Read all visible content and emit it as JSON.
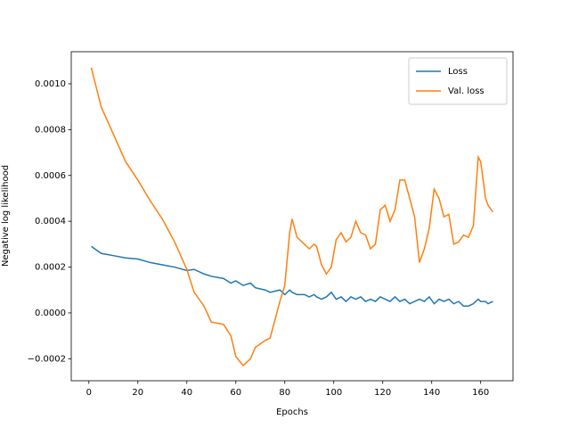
{
  "chart_data": {
    "type": "line",
    "x_label": "Epochs",
    "y_label": "Negative log likelihood",
    "x": [
      1,
      5,
      10,
      15,
      20,
      25,
      30,
      35,
      40,
      43,
      47,
      50,
      55,
      58,
      60,
      63,
      66,
      68,
      72,
      74,
      78,
      80,
      82,
      83,
      85,
      88,
      90,
      92,
      93,
      95,
      97,
      99,
      101,
      103,
      105,
      107,
      109,
      111,
      113,
      115,
      117,
      119,
      121,
      123,
      125,
      127,
      129,
      131,
      133,
      135,
      137,
      139,
      141,
      143,
      145,
      147,
      149,
      151,
      153,
      155,
      157,
      159,
      160,
      162,
      163,
      165
    ],
    "series": [
      {
        "name": "Loss",
        "color": "#1f77b4",
        "values": [
          0.00029,
          0.00026,
          0.00025,
          0.00024,
          0.000235,
          0.00022,
          0.00021,
          0.0002,
          0.000185,
          0.00019,
          0.00017,
          0.00016,
          0.00015,
          0.00013,
          0.00014,
          0.00012,
          0.00013,
          0.00011,
          0.0001,
          9e-05,
          0.0001,
          8e-05,
          0.0001,
          9e-05,
          8e-05,
          8e-05,
          7e-05,
          8e-05,
          7e-05,
          6e-05,
          7e-05,
          9e-05,
          6e-05,
          7e-05,
          5e-05,
          7e-05,
          6e-05,
          7e-05,
          5e-05,
          6e-05,
          5e-05,
          7e-05,
          6e-05,
          5e-05,
          7e-05,
          5e-05,
          6e-05,
          4e-05,
          5e-05,
          6e-05,
          5e-05,
          7e-05,
          4e-05,
          6e-05,
          5e-05,
          6e-05,
          4e-05,
          5e-05,
          3e-05,
          3e-05,
          4e-05,
          6e-05,
          5e-05,
          5e-05,
          4e-05,
          5e-05
        ]
      },
      {
        "name": "Val. loss",
        "color": "#ff7f0e",
        "values": [
          0.00107,
          0.0009,
          0.00078,
          0.00066,
          0.00058,
          0.00049,
          0.00041,
          0.00031,
          0.00019,
          9e-05,
          3e-05,
          -4e-05,
          -5e-05,
          -0.0001,
          -0.00019,
          -0.00023,
          -0.0002,
          -0.00015,
          -0.00012,
          -0.00011,
          5e-05,
          0.00012,
          0.00035,
          0.00041,
          0.00033,
          0.0003,
          0.00028,
          0.0003,
          0.00029,
          0.00021,
          0.00017,
          0.0002,
          0.00032,
          0.00035,
          0.00031,
          0.00033,
          0.0004,
          0.00035,
          0.00034,
          0.00028,
          0.0003,
          0.00045,
          0.00047,
          0.0004,
          0.00045,
          0.00058,
          0.00058,
          0.0005,
          0.00042,
          0.00022,
          0.00028,
          0.00037,
          0.00054,
          0.0005,
          0.00042,
          0.00043,
          0.0003,
          0.00031,
          0.00034,
          0.00033,
          0.00038,
          0.00068,
          0.00066,
          0.0005,
          0.00047,
          0.00044
        ]
      }
    ],
    "xlim": [
      -7.2,
      173.2
    ],
    "xticks": [
      0,
      20,
      40,
      60,
      80,
      100,
      120,
      140,
      160
    ],
    "ylim": [
      -0.000296,
      0.00114
    ],
    "yticks": [
      {
        "value": -0.0002,
        "label": "−0.0002"
      },
      {
        "value": 0,
        "label": "0.0000"
      },
      {
        "value": 0.0002,
        "label": "0.0002"
      },
      {
        "value": 0.0004,
        "label": "0.0004"
      },
      {
        "value": 0.0006,
        "label": "0.0006"
      },
      {
        "value": 0.0008,
        "label": "0.0008"
      },
      {
        "value": 0.001,
        "label": "0.0010"
      }
    ],
    "legend": "upper right"
  }
}
